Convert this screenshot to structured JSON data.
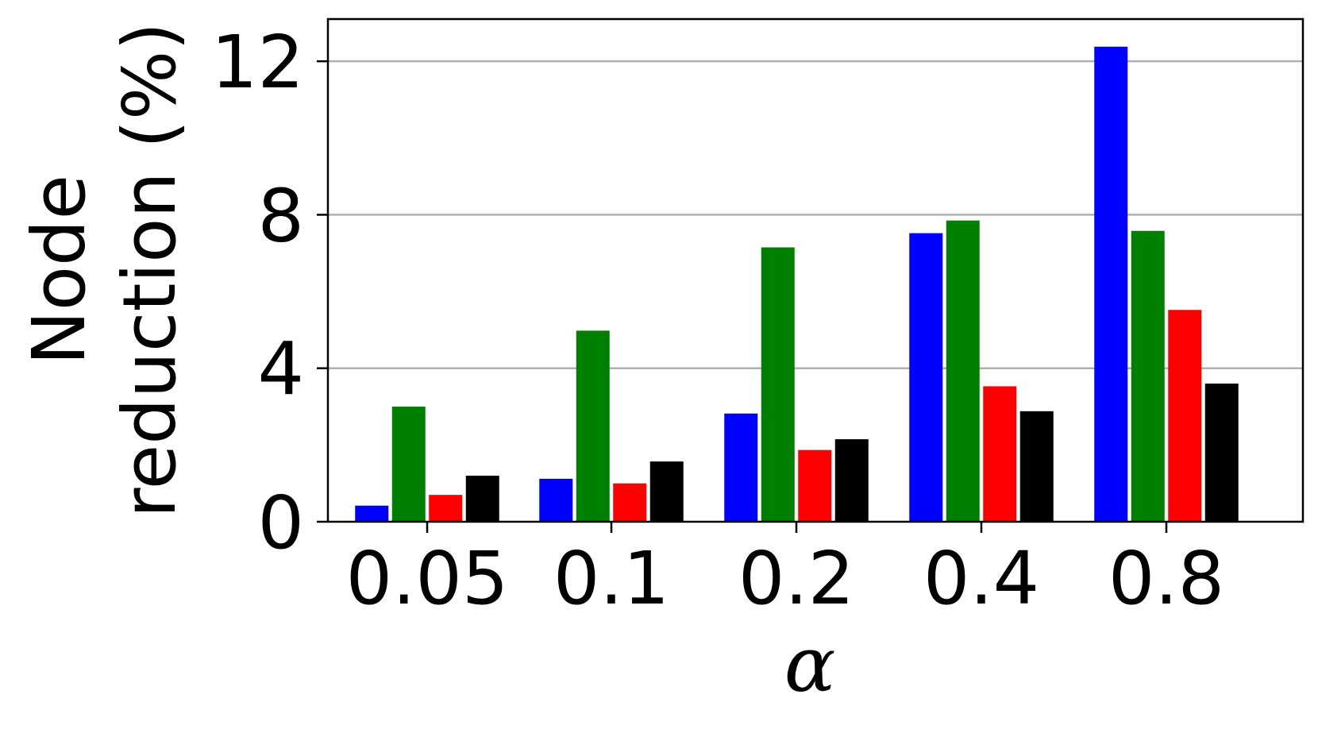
{
  "chart_data": {
    "type": "bar",
    "title": "",
    "xlabel": "α",
    "ylabel_lines": [
      "Node",
      "reduction (%)"
    ],
    "categories": [
      "0.05",
      "0.1",
      "0.2",
      "0.4",
      "0.8"
    ],
    "yticks": [
      "0",
      "4",
      "8",
      "12"
    ],
    "ylim": [
      0,
      13.1
    ],
    "grid": "y",
    "legend": "none",
    "series": [
      {
        "color": "#0000ff",
        "values": [
          0.42,
          1.12,
          2.82,
          7.52,
          12.38
        ]
      },
      {
        "color": "#008000",
        "values": [
          3.0,
          4.98,
          7.15,
          7.85,
          7.58
        ]
      },
      {
        "color": "#ff0000",
        "values": [
          0.7,
          1.0,
          1.87,
          3.53,
          5.52
        ]
      },
      {
        "color": "#000000",
        "values": [
          1.2,
          1.57,
          2.15,
          2.88,
          3.6
        ]
      }
    ]
  }
}
